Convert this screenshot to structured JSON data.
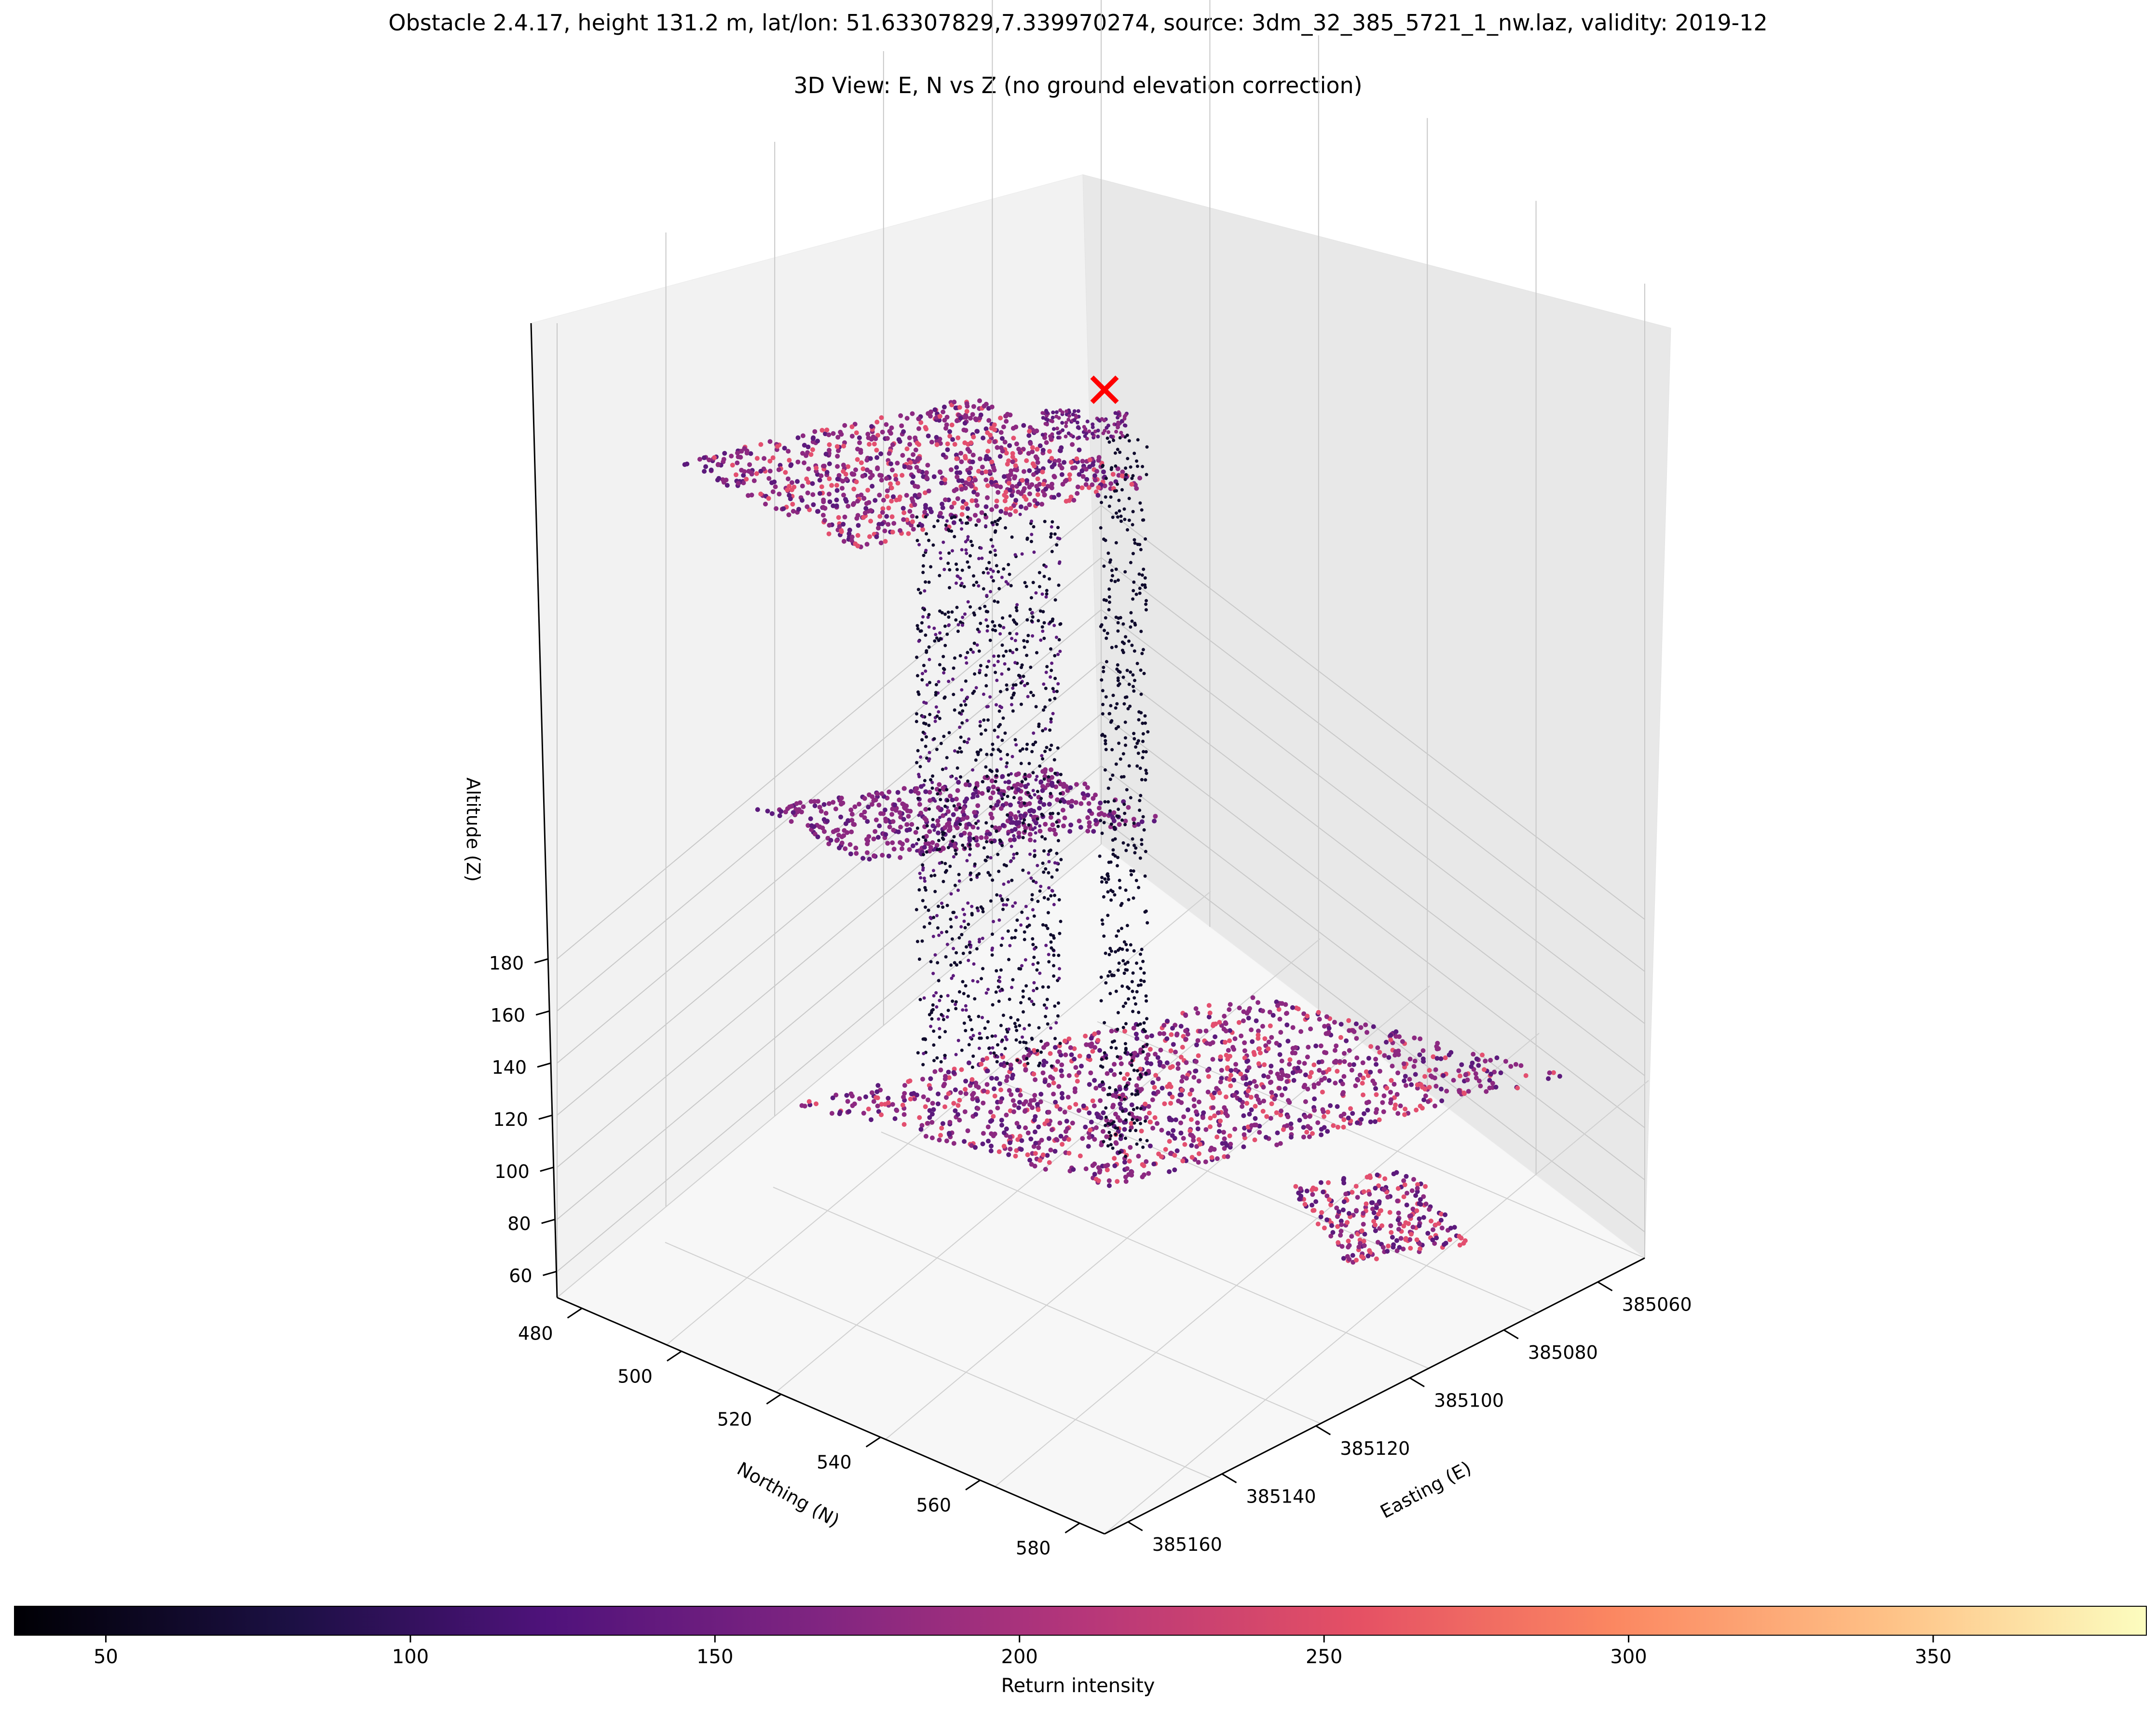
{
  "figure": {
    "title": "Obstacle 2.4.17, height 131.2 m, lat/lon: 51.63307829,7.339970274, source: 3dm_32_385_5721_1_nw.laz, validity: 2019-12",
    "subtitle": "3D View: E, N vs Z (no ground elevation correction)"
  },
  "chart_data": {
    "type": "scatter",
    "projection": "3d",
    "xlabel": "Easting (E)",
    "ylabel": "Northing (N)",
    "zlabel": "Altitude (Z)",
    "xticks": [
      "385060",
      "385080",
      "385100",
      "385120",
      "385140",
      "385160"
    ],
    "yticks": [
      "480",
      "500",
      "520",
      "540",
      "560",
      "580"
    ],
    "zticks": [
      "60",
      "80",
      "100",
      "120",
      "140",
      "160",
      "180"
    ],
    "xlim": [
      385050,
      385165
    ],
    "ylim": [
      475,
      585
    ],
    "zlim": [
      50,
      199
    ],
    "grid": true,
    "colormap": "magma",
    "colorbar": {
      "label": "Return intensity",
      "ticks": [
        "50",
        "100",
        "150",
        "200",
        "250",
        "300",
        "350"
      ],
      "range": [
        35,
        385
      ],
      "orientation": "horizontal",
      "placement": "bottom"
    },
    "marker": {
      "symbol": "x",
      "color": "#ff0000",
      "z": 193
    },
    "point_colors": {
      "high": "#e34f6f",
      "mid": "#8c2981",
      "low": "#5c1a7c",
      "dark": "#100b2d"
    }
  }
}
